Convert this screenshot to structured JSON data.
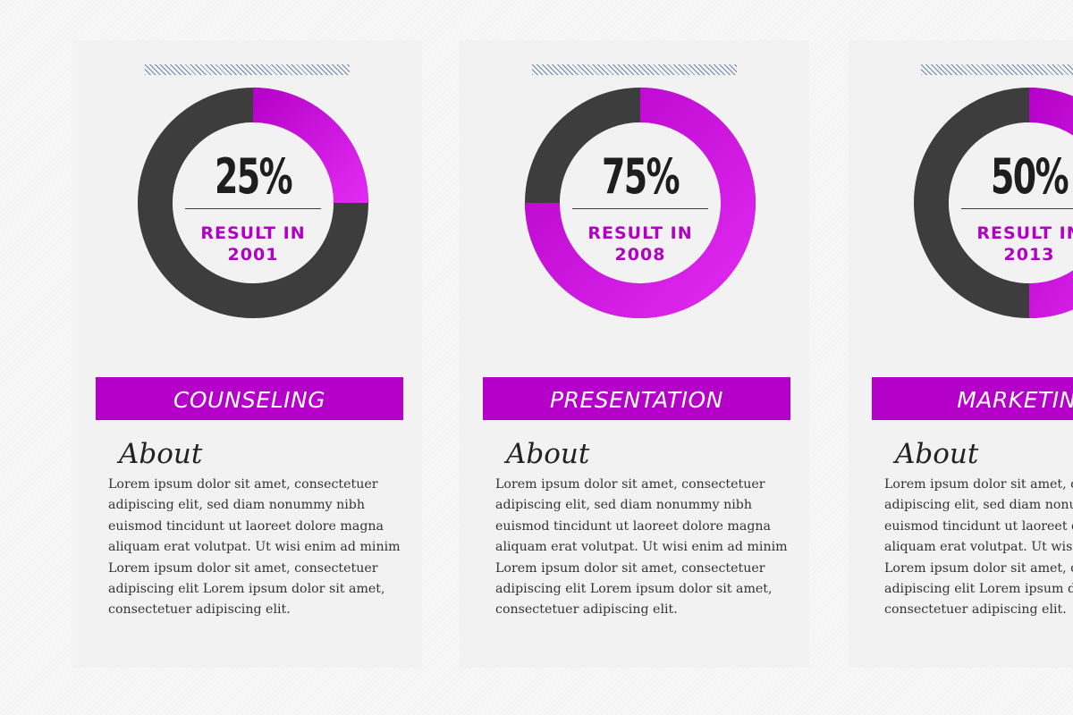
{
  "chart_data": [
    {
      "type": "pie",
      "value_label": "25%",
      "values": [
        25,
        75
      ],
      "result_line1": "RESULT IN",
      "year": "2001",
      "category": "COUNSELING",
      "about_title": "About",
      "about_text": "Lorem ipsum dolor sit amet, consectetuer adipiscing elit, sed diam nonummy nibh euismod tincidunt ut laoreet dolore magna aliquam erat volutpat. Ut wisi enim ad minim Lorem ipsum dolor sit amet, consectetuer adipiscing elit Lorem ipsum dolor sit amet, consectetuer adipiscing elit."
    },
    {
      "type": "pie",
      "value_label": "75%",
      "values": [
        75,
        25
      ],
      "result_line1": "RESULT IN",
      "year": "2008",
      "category": "PRESENTATION",
      "about_title": "About",
      "about_text": "Lorem ipsum dolor sit amet, consectetuer adipiscing elit, sed diam nonummy nibh euismod tincidunt ut laoreet dolore magna aliquam erat volutpat. Ut wisi enim ad minim Lorem ipsum dolor sit amet, consectetuer adipiscing elit Lorem ipsum dolor sit amet, consectetuer adipiscing elit."
    },
    {
      "type": "pie",
      "value_label": "50%",
      "values": [
        50,
        50
      ],
      "result_line1": "RESULT IN",
      "year": "2013",
      "category": "MARKETING",
      "about_title": "About",
      "about_text": "Lorem ipsum dolor sit amet, consectetuer adipiscing elit, sed diam nonummy nibh euismod tincidunt ut laoreet dolore magna aliquam erat volutpat. Ut wisi enim ad minim Lorem ipsum dolor sit amet, consectetuer adipiscing elit Lorem ipsum dolor sit amet, consectetuer adipiscing elit."
    }
  ],
  "colors": {
    "accent": "#b400c8",
    "accent_light": "#e32cf3",
    "ring_dark": "#3d3d3d",
    "card_bg": "#f2f2f2",
    "hatch": "#6f86a8"
  }
}
